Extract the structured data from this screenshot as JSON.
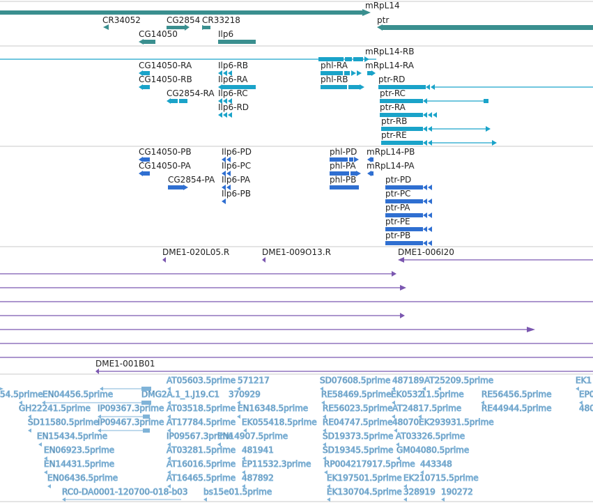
{
  "colors": {
    "gene": "#3a8f8f",
    "transcript": "#1aa3c9",
    "protein": "#2f6fd1",
    "clone": "#7b57b0",
    "est": "#7fb3d8",
    "divider": "#c8c8c8"
  },
  "tracks": {
    "genes": {
      "features": [
        {
          "label": "mRpL14",
          "glyph": "long-bar-arrow"
        },
        {
          "label": "CR34052",
          "glyph": "arrow"
        },
        {
          "label": "CG2854",
          "glyph": "bar-arrow"
        },
        {
          "label": "CR33218",
          "glyph": "arrow"
        },
        {
          "label": "CG14050",
          "glyph": "bar-arrow"
        },
        {
          "label": "Ilp6",
          "glyph": "bar"
        },
        {
          "label": "ptr",
          "glyph": "bar-arrow"
        }
      ]
    },
    "transcripts": {
      "features": [
        {
          "label": "mRpL14-RB"
        },
        {
          "label": "CG14050-RA"
        },
        {
          "label": "Ilp6-RB"
        },
        {
          "label": "phl-RA"
        },
        {
          "label": "mRpL14-RA"
        },
        {
          "label": "CG14050-RB"
        },
        {
          "label": "Ilp6-RA"
        },
        {
          "label": "phl-RB"
        },
        {
          "label": "ptr-RD"
        },
        {
          "label": "CG2854-RA"
        },
        {
          "label": "Ilp6-RC"
        },
        {
          "label": "ptr-RC"
        },
        {
          "label": "Ilp6-RD"
        },
        {
          "label": "ptr-RA"
        },
        {
          "label": "ptr-RB"
        },
        {
          "label": "ptr-RE"
        }
      ]
    },
    "proteins": {
      "features": [
        {
          "label": "CG14050-PB"
        },
        {
          "label": "Ilp6-PD"
        },
        {
          "label": "phl-PD"
        },
        {
          "label": "mRpL14-PB"
        },
        {
          "label": "CG14050-PA"
        },
        {
          "label": "Ilp6-PC"
        },
        {
          "label": "phl-PA"
        },
        {
          "label": "mRpL14-PA"
        },
        {
          "label": "CG2854-PA"
        },
        {
          "label": "Ilp6-PA"
        },
        {
          "label": "phl-PB"
        },
        {
          "label": "ptr-PD"
        },
        {
          "label": "Ilp6-PB"
        },
        {
          "label": "ptr-PC"
        },
        {
          "label": "ptr-PA"
        },
        {
          "label": "ptr-PE"
        },
        {
          "label": "ptr-PB"
        }
      ]
    },
    "clones": {
      "features": [
        {
          "label": "DME1-020L05.R"
        },
        {
          "label": "DME1-009O13.R"
        },
        {
          "label": "DME1-006I20"
        },
        {
          "label": "DME1-001B01"
        }
      ]
    },
    "ests": {
      "features": [
        {
          "label": "AT05603.5prime"
        },
        {
          "label": "571217"
        },
        {
          "label": "SD07608.5prime"
        },
        {
          "label": "487189"
        },
        {
          "label": "AT25209.5prime"
        },
        {
          "label": "EK1"
        },
        {
          "label": "54.5prime"
        },
        {
          "label": "EN04456.5prime"
        },
        {
          "label": "DMG2A.1_1.J19.C1"
        },
        {
          "label": "370929"
        },
        {
          "label": "RE58469.5prime"
        },
        {
          "label": "EK0532"
        },
        {
          "label": "11.5prime"
        },
        {
          "label": "RE56456.5prime"
        },
        {
          "label": "EP0"
        },
        {
          "label": "GH22241.5prime"
        },
        {
          "label": "IP09367.3prime"
        },
        {
          "label": "AT03518.5prime"
        },
        {
          "label": "EN16348.5prime"
        },
        {
          "label": "RE56023.5prime"
        },
        {
          "label": "AT24817.5prime"
        },
        {
          "label": "RE44944.5prime"
        },
        {
          "label": "480"
        },
        {
          "label": "SD11580.5prime"
        },
        {
          "label": "IP09467.3prime"
        },
        {
          "label": "AT17784.5prime"
        },
        {
          "label": "EK055418.5prime"
        },
        {
          "label": "RE04747.5prime"
        },
        {
          "label": "48070"
        },
        {
          "label": "EK293931.5prime"
        },
        {
          "label": "EN15434.5prime"
        },
        {
          "label": "IP09567.3prime"
        },
        {
          "label": "EN14907.5prime"
        },
        {
          "label": "SD19373.5prime"
        },
        {
          "label": "AT03326.5prime"
        },
        {
          "label": "EN06923.5prime"
        },
        {
          "label": "AT03281.5prime"
        },
        {
          "label": "481941"
        },
        {
          "label": "SD19345.5prime"
        },
        {
          "label": "GM04080.5prime"
        },
        {
          "label": "EN14431.5prime"
        },
        {
          "label": "AT16016.5prime"
        },
        {
          "label": "EP11532.3prime"
        },
        {
          "label": "RP004217917.5prime"
        },
        {
          "label": "443348"
        },
        {
          "label": "EN06436.5prime"
        },
        {
          "label": "AT16465.5prime"
        },
        {
          "label": "487892"
        },
        {
          "label": "EK197501.5prime"
        },
        {
          "label": "EK210715.5prime"
        },
        {
          "label": "RC0-DA0001-120700-018-b03"
        },
        {
          "label": "bs15e01.5prime"
        },
        {
          "label": "EK130704.5prime"
        },
        {
          "label": "328919"
        },
        {
          "label": "190272"
        }
      ]
    }
  }
}
